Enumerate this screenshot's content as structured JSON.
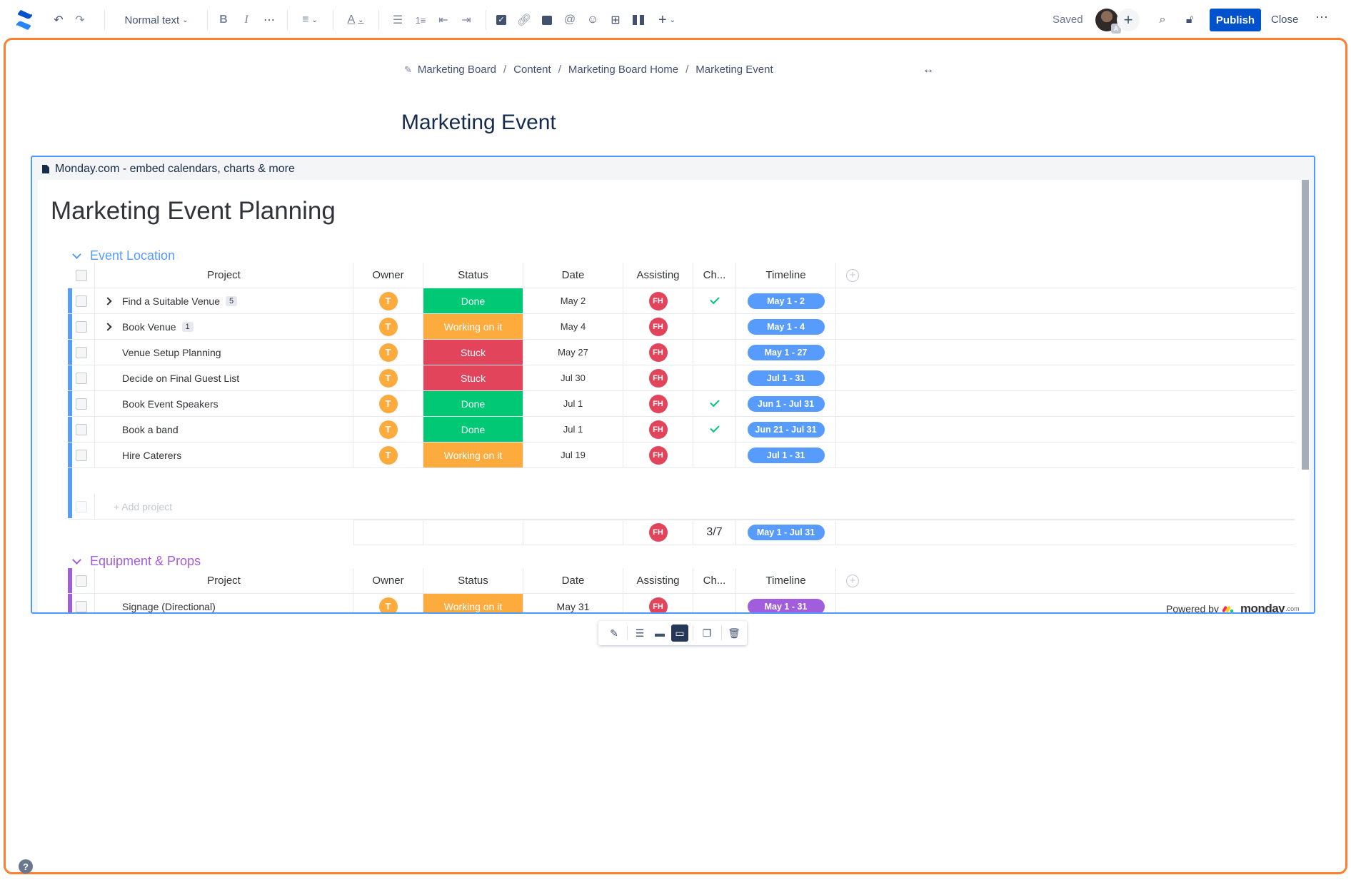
{
  "toolbar": {
    "text_style": "Normal text",
    "saved": "Saved",
    "user_initial": "A",
    "publish": "Publish",
    "close": "Close"
  },
  "breadcrumb": [
    "Marketing Board",
    "Content",
    "Marketing Board Home",
    "Marketing Event"
  ],
  "page_title": "Marketing Event",
  "macro": {
    "header": "Monday.com - embed calendars, charts & more",
    "board_title": "Marketing Event Planning",
    "columns": [
      "Project",
      "Owner",
      "Status",
      "Date",
      "Assisting",
      "Ch...",
      "Timeline"
    ],
    "groups": [
      {
        "title": "Event Location",
        "color": "#579bfc",
        "rows": [
          {
            "project": "Find a Suitable Venue",
            "subitems": "5",
            "owner": "T",
            "status": "Done",
            "status_color": "#00c875",
            "date": "May 2",
            "assisting": "FH",
            "checked": true,
            "timeline": "May 1 - 2"
          },
          {
            "project": "Book Venue",
            "subitems": "1",
            "owner": "T",
            "status": "Working on it",
            "status_color": "#fdab3d",
            "date": "May 4",
            "assisting": "FH",
            "checked": false,
            "timeline": "May 1 - 4"
          },
          {
            "project": "Venue Setup Planning",
            "subitems": "",
            "owner": "T",
            "status": "Stuck",
            "status_color": "#e2445c",
            "date": "May 27",
            "assisting": "FH",
            "checked": false,
            "timeline": "May 1 - 27"
          },
          {
            "project": "Decide on Final Guest List",
            "subitems": "",
            "owner": "T",
            "status": "Stuck",
            "status_color": "#e2445c",
            "date": "Jul 30",
            "assisting": "FH",
            "checked": false,
            "timeline": "Jul 1 - 31"
          },
          {
            "project": "Book Event Speakers",
            "subitems": "",
            "owner": "T",
            "status": "Done",
            "status_color": "#00c875",
            "date": "Jul 1",
            "assisting": "FH",
            "checked": true,
            "timeline": "Jun 1 - Jul 31"
          },
          {
            "project": "Book a band",
            "subitems": "",
            "owner": "T",
            "status": "Done",
            "status_color": "#00c875",
            "date": "Jul 1",
            "assisting": "FH",
            "checked": true,
            "timeline": "Jun 21 - Jul 31"
          },
          {
            "project": "Hire Caterers",
            "subitems": "",
            "owner": "T",
            "status": "Working on it",
            "status_color": "#fdab3d",
            "date": "Jul 19",
            "assisting": "FH",
            "checked": false,
            "timeline": "Jul 1 - 31"
          }
        ],
        "add_row": "+ Add project",
        "summary": {
          "assisting": "FH",
          "checks": "3/7",
          "timeline": "May 1 - Jul 31"
        }
      },
      {
        "title": "Equipment & Props",
        "color": "#a25ddc",
        "rows": [
          {
            "project": "Signage (Directional)",
            "owner": "T",
            "status": "Working on it",
            "status_color": "#fdab3d",
            "date": "May 31",
            "assisting": "FH",
            "timeline": "May 1 - 31"
          }
        ]
      }
    ],
    "powered_by": "Powered by",
    "powered_brand": "monday",
    "powered_suffix": ".com"
  }
}
